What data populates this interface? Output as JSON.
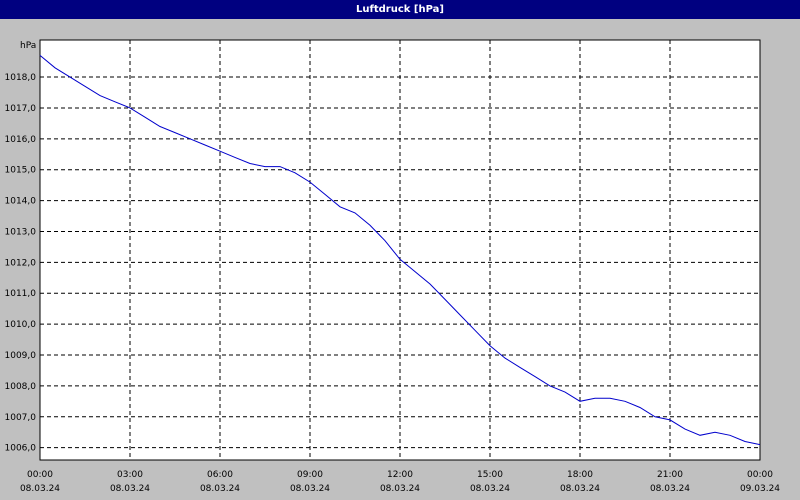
{
  "window": {
    "title": "Luftdruck [hPa]"
  },
  "colors": {
    "titlebar": "#000080",
    "background": "#c0c0c0",
    "plot_bg": "#ffffff",
    "line": "#0000cc",
    "grid": "#000000"
  },
  "chart_data": {
    "type": "line",
    "title": "Luftdruck [hPa]",
    "ylabel": "hPa",
    "xlabel": "",
    "grid": true,
    "grid_style": "dashed",
    "legend": "none",
    "ylim": [
      1005.6,
      1019.2
    ],
    "xlim": [
      "08.03.24 00:00",
      "09.03.24 00:00"
    ],
    "y_ticks": [
      1006,
      1007,
      1008,
      1009,
      1010,
      1011,
      1012,
      1013,
      1014,
      1015,
      1016,
      1017,
      1018
    ],
    "y_tick_labels": [
      "1006,0",
      "1007,0",
      "1008,0",
      "1009,0",
      "1010,0",
      "1011,0",
      "1012,0",
      "1013,0",
      "1014,0",
      "1015,0",
      "1016,0",
      "1017,0",
      "1018,0"
    ],
    "x_ticks": [
      {
        "time": "00:00",
        "date": "08.03.24"
      },
      {
        "time": "03:00",
        "date": "08.03.24"
      },
      {
        "time": "06:00",
        "date": "08.03.24"
      },
      {
        "time": "09:00",
        "date": "08.03.24"
      },
      {
        "time": "12:00",
        "date": "08.03.24"
      },
      {
        "time": "15:00",
        "date": "08.03.24"
      },
      {
        "time": "18:00",
        "date": "08.03.24"
      },
      {
        "time": "21:00",
        "date": "08.03.24"
      },
      {
        "time": "00:00",
        "date": "09.03.24"
      }
    ],
    "series": [
      {
        "x": [
          "08.03.24 00:00",
          "08.03.24 00:30",
          "08.03.24 01:00",
          "08.03.24 01:30",
          "08.03.24 02:00",
          "08.03.24 02:30",
          "08.03.24 03:00",
          "08.03.24 03:30",
          "08.03.24 04:00",
          "08.03.24 04:30",
          "08.03.24 05:00",
          "08.03.24 05:30",
          "08.03.24 06:00",
          "08.03.24 06:30",
          "08.03.24 07:00",
          "08.03.24 07:30",
          "08.03.24 08:00",
          "08.03.24 08:30",
          "08.03.24 09:00",
          "08.03.24 09:30",
          "08.03.24 10:00",
          "08.03.24 10:30",
          "08.03.24 11:00",
          "08.03.24 11:30",
          "08.03.24 12:00",
          "08.03.24 12:30",
          "08.03.24 13:00",
          "08.03.24 13:30",
          "08.03.24 14:00",
          "08.03.24 14:30",
          "08.03.24 15:00",
          "08.03.24 15:30",
          "08.03.24 16:00",
          "08.03.24 16:30",
          "08.03.24 17:00",
          "08.03.24 17:30",
          "08.03.24 18:00",
          "08.03.24 18:30",
          "08.03.24 19:00",
          "08.03.24 19:30",
          "08.03.24 20:00",
          "08.03.24 20:30",
          "08.03.24 21:00",
          "08.03.24 21:30",
          "08.03.24 22:00",
          "08.03.24 22:30",
          "08.03.24 23:00",
          "08.03.24 23:30",
          "09.03.24 00:00"
        ],
        "values": [
          1018.7,
          1018.3,
          1018.0,
          1017.7,
          1017.4,
          1017.2,
          1017.0,
          1016.7,
          1016.4,
          1016.2,
          1016.0,
          1015.8,
          1015.6,
          1015.4,
          1015.2,
          1015.1,
          1015.1,
          1014.9,
          1014.6,
          1014.2,
          1013.8,
          1013.6,
          1013.2,
          1012.7,
          1012.1,
          1011.7,
          1011.3,
          1010.8,
          1010.3,
          1009.8,
          1009.3,
          1008.9,
          1008.6,
          1008.3,
          1008.0,
          1007.8,
          1007.5,
          1007.6,
          1007.6,
          1007.5,
          1007.3,
          1007.0,
          1006.9,
          1006.6,
          1006.4,
          1006.5,
          1006.4,
          1006.2,
          1006.1
        ]
      }
    ]
  }
}
